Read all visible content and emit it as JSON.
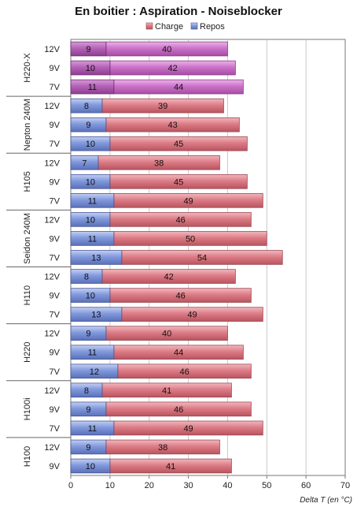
{
  "chart_data": {
    "type": "bar",
    "orientation": "horizontal",
    "stacked": true,
    "title": "En boitier : Aspiration - Noiseblocker",
    "xlabel": "Delta T (en °C)",
    "xlim": [
      0,
      70
    ],
    "xticks": [
      0,
      10,
      20,
      30,
      40,
      50,
      60,
      70
    ],
    "grid": "vertical",
    "legend": {
      "placement": "top-right",
      "items": [
        "Charge",
        "Repos"
      ]
    },
    "colors": {
      "charge": "#d9757f",
      "repos": "#7f96d8",
      "charge_highlight": "#c96ec6",
      "repos_highlight": "#b25fb6"
    },
    "groups": [
      {
        "name": "H220-X",
        "highlight": true,
        "rows": [
          {
            "label": "12V",
            "repos": 9,
            "charge": 40
          },
          {
            "label": "9V",
            "repos": 10,
            "charge": 42
          },
          {
            "label": "7V",
            "repos": 11,
            "charge": 44
          }
        ]
      },
      {
        "name": "Nepton 240M",
        "rows": [
          {
            "label": "12V",
            "repos": 8,
            "charge": 39
          },
          {
            "label": "9V",
            "repos": 9,
            "charge": 43
          },
          {
            "label": "7V",
            "repos": 10,
            "charge": 45
          }
        ]
      },
      {
        "name": "H105",
        "rows": [
          {
            "label": "12V",
            "repos": 7,
            "charge": 38
          },
          {
            "label": "9V",
            "repos": 10,
            "charge": 45
          },
          {
            "label": "7V",
            "repos": 11,
            "charge": 49
          }
        ]
      },
      {
        "name": "Seidon 240M",
        "rows": [
          {
            "label": "12V",
            "repos": 10,
            "charge": 46
          },
          {
            "label": "9V",
            "repos": 11,
            "charge": 50
          },
          {
            "label": "7V",
            "repos": 13,
            "charge": 54
          }
        ]
      },
      {
        "name": "H110",
        "rows": [
          {
            "label": "12V",
            "repos": 8,
            "charge": 42
          },
          {
            "label": "9V",
            "repos": 10,
            "charge": 46
          },
          {
            "label": "7V",
            "repos": 13,
            "charge": 49
          }
        ]
      },
      {
        "name": "H220",
        "rows": [
          {
            "label": "12V",
            "repos": 9,
            "charge": 40
          },
          {
            "label": "9V",
            "repos": 11,
            "charge": 44
          },
          {
            "label": "7V",
            "repos": 12,
            "charge": 46
          }
        ]
      },
      {
        "name": "H100i",
        "rows": [
          {
            "label": "12V",
            "repos": 8,
            "charge": 41
          },
          {
            "label": "9V",
            "repos": 9,
            "charge": 46
          },
          {
            "label": "7V",
            "repos": 11,
            "charge": 49
          }
        ]
      },
      {
        "name": "H100",
        "rows": [
          {
            "label": "12V",
            "repos": 9,
            "charge": 38
          },
          {
            "label": "9V",
            "repos": 10,
            "charge": 41
          }
        ]
      }
    ]
  }
}
